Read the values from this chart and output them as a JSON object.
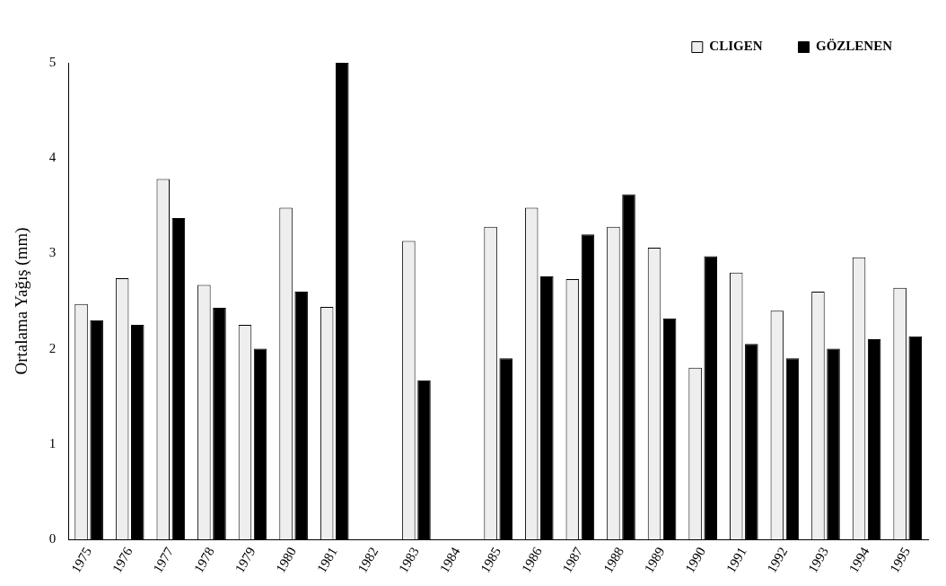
{
  "chart_data": {
    "type": "bar",
    "ylabel": "Ortalama Yağış (mm)",
    "categories": [
      "1975",
      "1976",
      "1977",
      "1978",
      "1979",
      "1980",
      "1981",
      "1982",
      "1983",
      "1984",
      "1985",
      "1986",
      "1987",
      "1988",
      "1989",
      "1990",
      "1991",
      "1992",
      "1993",
      "1994",
      "1995"
    ],
    "series": [
      {
        "name": "CLIGEN",
        "color": "#eeeeee",
        "values": [
          2.47,
          2.74,
          3.78,
          2.67,
          2.25,
          3.48,
          2.44,
          null,
          3.13,
          null,
          3.28,
          3.48,
          2.73,
          3.28,
          3.06,
          1.8,
          2.8,
          2.4,
          2.6,
          2.96,
          2.64
        ]
      },
      {
        "name": "GÖZLENEN",
        "color": "#000000",
        "values": [
          2.3,
          2.25,
          3.37,
          2.43,
          2.0,
          2.6,
          5.0,
          null,
          1.67,
          null,
          1.9,
          2.76,
          3.2,
          3.62,
          2.32,
          2.97,
          2.05,
          1.9,
          2.0,
          2.1,
          2.13
        ]
      }
    ],
    "ylim": [
      0,
      5
    ],
    "yticks": [
      0,
      1,
      2,
      3,
      4,
      5
    ],
    "grid": false,
    "legend": "top right"
  }
}
